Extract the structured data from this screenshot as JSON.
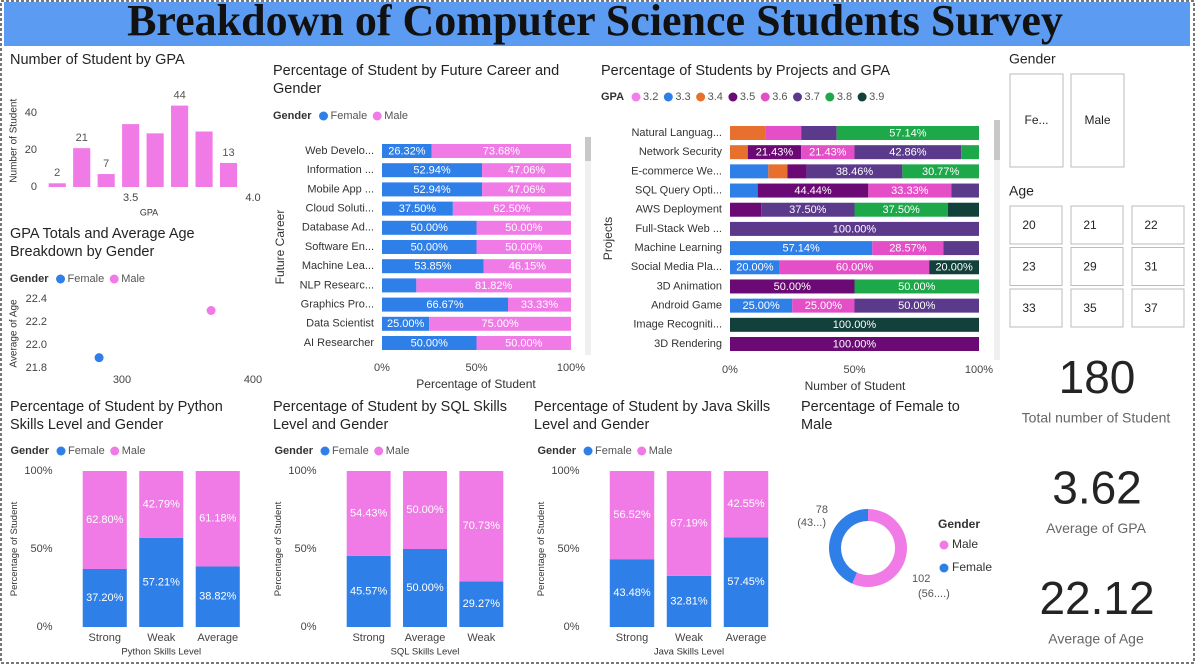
{
  "title": "Breakdown of Computer Science Students Survey",
  "chart_data": [
    {
      "type": "bar",
      "title": "Number of Student by GPA",
      "x": [
        3.2,
        3.3,
        3.4,
        3.5,
        3.6,
        3.7,
        3.8,
        3.9
      ],
      "values": [
        2,
        21,
        7,
        34,
        29,
        44,
        30,
        13
      ],
      "value_labels": [
        "2",
        "21",
        "7",
        null,
        null,
        "44",
        null,
        "13"
      ],
      "color": "#f07be6",
      "xlim": [
        3.15,
        4.0
      ],
      "xticks": [
        3.5,
        {
          "value": 4,
          "label": "4.0"
        }
      ],
      "ylim": [
        0,
        50
      ],
      "yticks": [
        0,
        20,
        40
      ],
      "xlabel": "GPA",
      "ylabel": "Number of Student"
    },
    {
      "type": "scatter",
      "title": "GPA Totals and Average Age Breakdown by Gender",
      "legend_title": "Gender",
      "series": [
        {
          "name": "Female",
          "color": "#2f7fe8",
          "x": [
            282.5
          ],
          "values": [
            21.89
          ]
        },
        {
          "name": "Male",
          "color": "#f07be6",
          "x": [
            368
          ],
          "values": [
            22.3
          ]
        }
      ],
      "xlim": [
        240,
        400
      ],
      "xticks": [
        300,
        400
      ],
      "ylim": [
        21.8,
        22.4
      ],
      "yticks": [
        21.8,
        {
          "value": 22,
          "label": "22.0"
        },
        22.2,
        22.4
      ],
      "ylabel": "Average of Age"
    },
    {
      "type": "stackedbar",
      "title": "Percentage of Student by Future Career and Gender",
      "legend_title": "Gender",
      "categories": [
        "Web Develo...",
        "Information ...",
        "Mobile App ...",
        "Cloud Soluti...",
        "Database Ad...",
        "Software En...",
        "Machine Lea...",
        "NLP Researc...",
        "Graphics Pro...",
        "Data Scientist",
        "AI Researcher"
      ],
      "series": [
        {
          "name": "Female",
          "color": "#2f7fe8",
          "values": [
            26.32,
            52.94,
            52.94,
            37.5,
            50,
            50,
            53.85,
            18.18,
            66.67,
            25,
            50
          ],
          "value_labels": [
            "26.32%",
            "52.94%",
            "52.94%",
            "37.50%",
            "50.00%",
            "50.00%",
            "53.85%",
            null,
            "66.67%",
            "25.00%",
            "50.00%"
          ]
        },
        {
          "name": "Male",
          "color": "#f07be6",
          "values": [
            73.68,
            47.06,
            47.06,
            62.5,
            50,
            50,
            46.15,
            81.82,
            33.33,
            75,
            50
          ],
          "value_labels": [
            "73.68%",
            "47.06%",
            "47.06%",
            "62.50%",
            "50.00%",
            "50.00%",
            "46.15%",
            "81.82%",
            "33.33%",
            "75.00%",
            "50.00%"
          ]
        }
      ],
      "xlim": [
        0,
        100
      ],
      "xticks": [
        {
          "value": 0,
          "label": "0%"
        },
        {
          "value": 50,
          "label": "50%"
        },
        {
          "value": 100,
          "label": "100%"
        }
      ],
      "xlabel": "Percentage of Student",
      "ylabel": "Future Career"
    },
    {
      "type": "stackedbar",
      "title": "Percentage of Students by Projects and GPA",
      "legend_title": "GPA",
      "categories": [
        "Natural Languag...",
        "Network Security",
        "E-commerce We...",
        "SQL Query Opti...",
        "AWS Deployment",
        "Full-Stack Web ...",
        "Machine Learning",
        "Social Media Pla...",
        "3D Animation",
        "Android Game",
        "Image Recogniti...",
        "3D Rendering"
      ],
      "series": [
        {
          "name": "3.2",
          "color": "#f27ee9",
          "values": [
            null,
            null,
            null,
            null,
            null,
            null,
            null,
            null,
            null,
            null,
            null,
            null
          ]
        },
        {
          "name": "3.3",
          "color": "#2f7fe8",
          "values": [
            null,
            null,
            15.38,
            11.11,
            null,
            null,
            57.14,
            20,
            null,
            25,
            null,
            null
          ],
          "value_labels": [
            null,
            null,
            null,
            null,
            null,
            null,
            "57.14%",
            "20.00%",
            null,
            "25.00%",
            null,
            null
          ]
        },
        {
          "name": "3.4",
          "color": "#e8702f",
          "values": [
            14.29,
            7.14,
            7.69,
            null,
            null,
            null,
            null,
            null,
            null,
            null,
            null,
            null
          ]
        },
        {
          "name": "3.5",
          "color": "#6b0a74",
          "values": [
            null,
            21.43,
            7.69,
            44.44,
            12.5,
            null,
            null,
            null,
            50,
            null,
            null,
            100
          ],
          "value_labels": [
            null,
            "21.43%",
            null,
            "44.44%",
            null,
            null,
            null,
            null,
            "50.00%",
            null,
            null,
            "100.00%"
          ]
        },
        {
          "name": "3.6",
          "color": "#e44fc8",
          "values": [
            14.29,
            21.43,
            null,
            33.33,
            null,
            null,
            28.57,
            60,
            null,
            25,
            null,
            null
          ],
          "value_labels": [
            null,
            "21.43%",
            null,
            "33.33%",
            null,
            null,
            "28.57%",
            "60.00%",
            null,
            "25.00%",
            null,
            null
          ]
        },
        {
          "name": "3.7",
          "color": "#5b3a8c",
          "values": [
            14.29,
            42.86,
            38.46,
            11.11,
            37.5,
            100,
            14.29,
            null,
            null,
            50,
            null,
            null
          ],
          "value_labels": [
            null,
            "42.86%",
            "38.46%",
            null,
            "37.50%",
            "100.00%",
            null,
            null,
            null,
            "50.00%",
            null,
            null
          ]
        },
        {
          "name": "3.8",
          "color": "#1da84a",
          "values": [
            57.14,
            7.14,
            30.77,
            null,
            37.5,
            null,
            null,
            null,
            50,
            null,
            null,
            null
          ],
          "value_labels": [
            "57.14%",
            null,
            "30.77%",
            null,
            "37.50%",
            null,
            null,
            null,
            "50.00%",
            null,
            null,
            null
          ]
        },
        {
          "name": "3.9",
          "color": "#12403a",
          "values": [
            null,
            null,
            null,
            null,
            12.5,
            null,
            null,
            20,
            null,
            null,
            100,
            null
          ],
          "value_labels": [
            null,
            null,
            null,
            null,
            null,
            null,
            null,
            "20.00%",
            null,
            null,
            "100.00%",
            null
          ]
        }
      ],
      "xlim": [
        0,
        100
      ],
      "xticks": [
        {
          "value": 0,
          "label": "0%"
        },
        {
          "value": 50,
          "label": "50%"
        },
        {
          "value": 100,
          "label": "100%"
        }
      ],
      "xlabel": "Number of Student",
      "ylabel": "Projects"
    },
    {
      "type": "stackedcolumn",
      "title": "Percentage of Student by Python Skills Level and Gender",
      "legend_title": "Gender",
      "categories": [
        "Strong",
        "Weak",
        "Average"
      ],
      "series": [
        {
          "name": "Female",
          "color": "#2f7fe8",
          "values": [
            37.2,
            57.21,
            38.82
          ],
          "value_labels": [
            "37.20%",
            "57.21%",
            "38.82%"
          ]
        },
        {
          "name": "Male",
          "color": "#f07be6",
          "values": [
            62.8,
            42.79,
            61.18
          ],
          "value_labels": [
            "62.80%",
            "42.79%",
            "61.18%"
          ]
        }
      ],
      "ylim": [
        0,
        100
      ],
      "yticks": [
        {
          "value": 0,
          "label": "0%"
        },
        {
          "value": 50,
          "label": "50%"
        },
        {
          "value": 100,
          "label": "100%"
        }
      ],
      "xlabel": "Python Skills Level",
      "ylabel": "Percentage of Student"
    },
    {
      "type": "stackedcolumn",
      "title": "Percentage of Student by SQL Skills Level and Gender",
      "legend_title": "Gender",
      "categories": [
        "Strong",
        "Average",
        "Weak"
      ],
      "series": [
        {
          "name": "Female",
          "color": "#2f7fe8",
          "values": [
            45.57,
            50,
            29.27
          ],
          "value_labels": [
            "45.57%",
            "50.00%",
            "29.27%"
          ]
        },
        {
          "name": "Male",
          "color": "#f07be6",
          "values": [
            54.43,
            50,
            70.73
          ],
          "value_labels": [
            "54.43%",
            "50.00%",
            "70.73%"
          ]
        }
      ],
      "ylim": [
        0,
        100
      ],
      "yticks": [
        {
          "value": 0,
          "label": "0%"
        },
        {
          "value": 50,
          "label": "50%"
        },
        {
          "value": 100,
          "label": "100%"
        }
      ],
      "xlabel": "SQL Skills Level",
      "ylabel": "Percentage of Student"
    },
    {
      "type": "stackedcolumn",
      "title": "Percentage of Student by Java Skills Level and Gender",
      "legend_title": "Gender",
      "categories": [
        "Strong",
        "Weak",
        "Average"
      ],
      "series": [
        {
          "name": "Female",
          "color": "#2f7fe8",
          "values": [
            43.48,
            32.81,
            57.45
          ],
          "value_labels": [
            "43.48%",
            "32.81%",
            "57.45%"
          ]
        },
        {
          "name": "Male",
          "color": "#f07be6",
          "values": [
            56.52,
            67.19,
            42.55
          ],
          "value_labels": [
            "56.52%",
            "67.19%",
            "42.55%"
          ]
        }
      ],
      "ylim": [
        0,
        100
      ],
      "yticks": [
        {
          "value": 0,
          "label": "0%"
        },
        {
          "value": 50,
          "label": "50%"
        },
        {
          "value": 100,
          "label": "100%"
        }
      ],
      "xlabel": "Java Skills Level",
      "ylabel": "Percentage of Student"
    },
    {
      "type": "donut",
      "title": "Percentage of Female to Male",
      "legend_title": "Gender",
      "categories": [
        "Male",
        "Female"
      ],
      "values": [
        102,
        78
      ],
      "colors": [
        "#f07be6",
        "#2f7fe8"
      ],
      "percent_labels": [
        "(56....)",
        "(43...)"
      ]
    }
  ],
  "slicers": [
    {
      "title": "Gender",
      "items": [
        "Fe...",
        "Male"
      ]
    },
    {
      "title": "Age",
      "items": [
        20,
        21,
        22,
        23,
        29,
        31,
        33,
        35,
        37
      ]
    }
  ],
  "cards": [
    {
      "value": 180,
      "label": "Total number of Student"
    },
    {
      "value": 3.62,
      "label": "Average of GPA"
    },
    {
      "value": 22.12,
      "label": "Average of Age"
    }
  ]
}
